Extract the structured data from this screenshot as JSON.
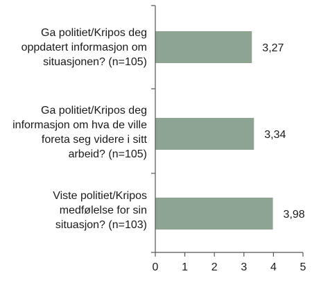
{
  "chart_data": {
    "type": "bar",
    "orientation": "horizontal",
    "categories": [
      "Ga politiet/Kripos deg\noppdatert informasjon om\nsituasjonen? (n=105)",
      "Ga politiet/Kripos deg\ninformasjon om hva de ville\nforeta seg videre i sitt\narbeid? (n=105)",
      "Viste politiet/Kripos\nmedfølelse for sin\nsituasjon? (n=103)"
    ],
    "values": [
      3.27,
      3.34,
      3.98
    ],
    "value_labels": [
      "3,27",
      "3,34",
      "3,98"
    ],
    "xlim": [
      0,
      5
    ],
    "xticks": [
      "0",
      "1",
      "2",
      "3",
      "4",
      "5"
    ],
    "bar_color": "#8ea493",
    "grid": false,
    "title": "",
    "xlabel": "",
    "ylabel": ""
  }
}
